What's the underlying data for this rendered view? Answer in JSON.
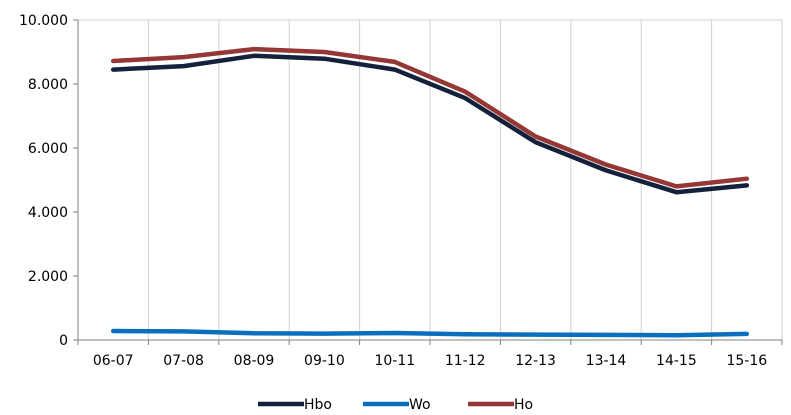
{
  "chart_data": {
    "type": "line",
    "title": "",
    "xlabel": "",
    "ylabel": "",
    "categories": [
      "06-07",
      "07-08",
      "08-09",
      "09-10",
      "10-11",
      "11-12",
      "12-13",
      "13-14",
      "14-15",
      "15-16"
    ],
    "ylim": [
      0,
      10000
    ],
    "yticks": [
      0,
      2000,
      4000,
      6000,
      8000,
      10000
    ],
    "ytick_labels": [
      "0",
      "2.000",
      "4.000",
      "6.000",
      "8.000",
      "10.000"
    ],
    "grid": "vertical category gridlines",
    "legend_position": "bottom",
    "series": [
      {
        "name": "Hbo",
        "color": "#13213a",
        "values": [
          8450,
          8560,
          8880,
          8790,
          8450,
          7560,
          6180,
          5300,
          4620,
          4830
        ]
      },
      {
        "name": "Wo",
        "color": "#0a70bd",
        "values": [
          280,
          270,
          210,
          200,
          220,
          180,
          170,
          160,
          150,
          190
        ]
      },
      {
        "name": "Ho",
        "color": "#953735",
        "values": [
          8720,
          8840,
          9090,
          9000,
          8690,
          7760,
          6360,
          5480,
          4800,
          5040
        ]
      }
    ]
  }
}
